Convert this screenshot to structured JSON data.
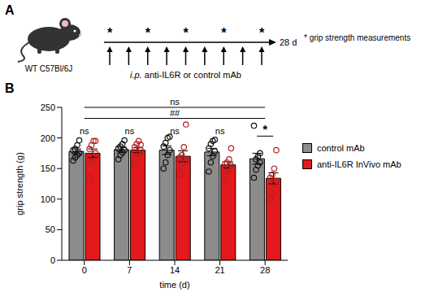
{
  "panel_labels": [
    "A",
    "B"
  ],
  "diagram": {
    "subject": "WT C57Bl/6J",
    "treatment": "i.p. anti-IL6R or control mAb",
    "end_label": "28 d",
    "marker": "*",
    "marker_legend": "* grip strength measurements",
    "timeline_range": [
      0,
      28
    ],
    "measurement_days": [
      0,
      7,
      14,
      21,
      28
    ],
    "injection_days": [
      0,
      3.5,
      7,
      10.5,
      14,
      17.5,
      21,
      24.5,
      28
    ]
  },
  "chart_data": {
    "type": "bar",
    "x_label": "time (d)",
    "y_label": "grip strength (g)",
    "categories": [
      0,
      7,
      14,
      21,
      28
    ],
    "series": [
      {
        "name": "control mAb",
        "color": "#8c8c8c",
        "values": [
          178,
          181,
          180,
          177,
          166
        ],
        "errors": [
          4,
          4,
          7,
          6,
          9
        ],
        "points": [
          [
            163,
            168,
            172,
            175,
            180,
            182,
            188,
            196
          ],
          [
            165,
            172,
            176,
            180,
            183,
            186,
            190,
            196
          ],
          [
            150,
            160,
            172,
            180,
            186,
            192,
            200,
            202
          ],
          [
            145,
            160,
            170,
            178,
            183,
            190,
            195,
            197
          ],
          [
            135,
            148,
            155,
            160,
            220,
            165,
            170,
            175
          ]
        ]
      },
      {
        "name": "anti-IL6R InVivo mAb",
        "color": "#e3191c",
        "values": [
          175,
          180,
          170,
          156,
          134
        ],
        "errors": [
          7,
          4,
          9,
          5,
          9
        ],
        "points": [
          [
            135,
            160,
            170,
            175,
            182,
            188,
            195,
            195
          ],
          [
            158,
            168,
            175,
            180,
            185,
            190,
            195,
            189
          ],
          [
            140,
            150,
            160,
            163,
            168,
            172,
            185,
            222
          ],
          [
            130,
            145,
            150,
            155,
            158,
            160,
            165,
            183
          ],
          [
            100,
            110,
            125,
            130,
            135,
            140,
            150,
            180
          ]
        ]
      }
    ],
    "ylim": [
      0,
      250
    ],
    "yticks": [
      0,
      50,
      100,
      150,
      200,
      250
    ],
    "grid": false,
    "legend": "right",
    "annotations": [
      {
        "text": "ns",
        "x1": 0,
        "x2": 28,
        "y": 250,
        "bracket": true
      },
      {
        "text": "##",
        "x1": 0,
        "x2": 28,
        "y": 232,
        "bracket": true
      },
      {
        "text": "ns",
        "x1": 0,
        "x2": 0,
        "y": 212,
        "bracket": false
      },
      {
        "text": "ns",
        "x1": 7,
        "x2": 7,
        "y": 212,
        "bracket": false
      },
      {
        "text": "ns",
        "x1": 14,
        "x2": 14,
        "y": 212,
        "bracket": false
      },
      {
        "text": "ns",
        "x1": 21,
        "x2": 21,
        "y": 212,
        "bracket": false
      },
      {
        "text": "*",
        "x1": 28,
        "x2": 28,
        "y": 203,
        "bracket": true
      }
    ]
  }
}
